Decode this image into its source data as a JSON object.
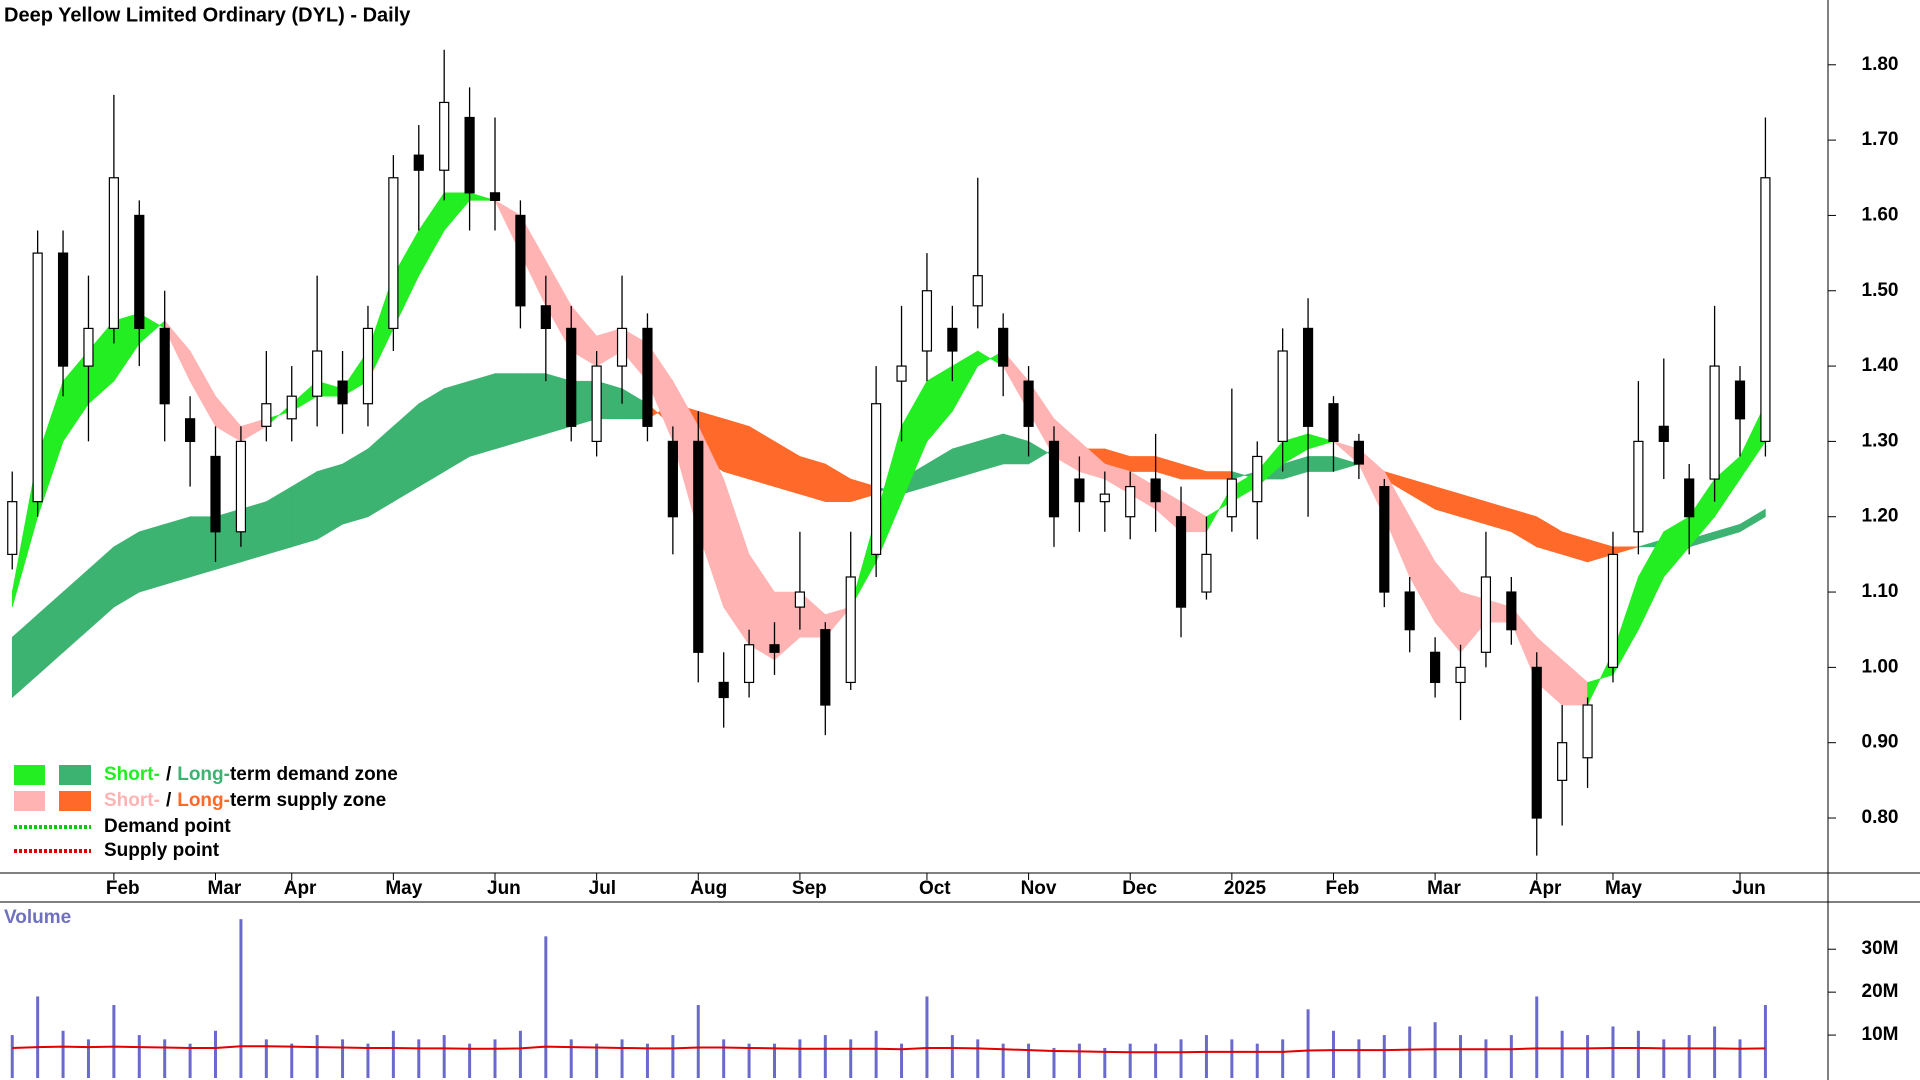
{
  "chart_data": [
    {
      "type": "candlestick",
      "title": "Deep Yellow Limited Ordinary (DYL) - Daily",
      "categories": [
        null,
        null,
        null,
        null,
        "Feb",
        null,
        null,
        null,
        "Mar",
        null,
        null,
        "Apr",
        null,
        null,
        null,
        "May",
        null,
        null,
        null,
        "Jun",
        null,
        null,
        null,
        "Jul",
        null,
        null,
        null,
        "Aug",
        null,
        null,
        null,
        "Sep",
        null,
        null,
        null,
        null,
        "Oct",
        null,
        null,
        null,
        "Nov",
        null,
        null,
        null,
        "Dec",
        null,
        null,
        null,
        "2025",
        null,
        null,
        null,
        "Feb",
        null,
        null,
        null,
        "Mar",
        null,
        null,
        null,
        "Apr",
        null,
        null,
        "May",
        null,
        null,
        null,
        null,
        "Jun",
        null
      ],
      "open": [
        1.15,
        1.22,
        1.55,
        1.4,
        1.45,
        1.6,
        1.45,
        1.33,
        1.28,
        1.18,
        1.32,
        1.33,
        1.36,
        1.38,
        1.35,
        1.45,
        1.68,
        1.66,
        1.73,
        1.63,
        1.6,
        1.48,
        1.45,
        1.3,
        1.4,
        1.45,
        1.3,
        1.3,
        0.98,
        0.98,
        1.03,
        1.08,
        1.05,
        0.98,
        1.15,
        1.38,
        1.42,
        1.45,
        1.48,
        1.45,
        1.38,
        1.3,
        1.25,
        1.22,
        1.2,
        1.25,
        1.2,
        1.1,
        1.2,
        1.22,
        1.3,
        1.45,
        1.35,
        1.3,
        1.24,
        1.1,
        1.02,
        0.98,
        1.02,
        1.1,
        1.0,
        0.85,
        0.88,
        1.0,
        1.18,
        1.32,
        1.25,
        1.25,
        1.38,
        1.3
      ],
      "high": [
        1.26,
        1.58,
        1.58,
        1.52,
        1.76,
        1.62,
        1.5,
        1.36,
        1.32,
        1.32,
        1.42,
        1.4,
        1.52,
        1.42,
        1.48,
        1.68,
        1.72,
        1.82,
        1.77,
        1.73,
        1.62,
        1.52,
        1.48,
        1.42,
        1.52,
        1.47,
        1.32,
        1.34,
        1.02,
        1.05,
        1.06,
        1.18,
        1.06,
        1.18,
        1.4,
        1.48,
        1.55,
        1.48,
        1.65,
        1.47,
        1.4,
        1.32,
        1.28,
        1.26,
        1.26,
        1.31,
        1.24,
        1.2,
        1.37,
        1.3,
        1.45,
        1.49,
        1.36,
        1.31,
        1.25,
        1.12,
        1.04,
        1.03,
        1.18,
        1.12,
        1.02,
        0.95,
        0.96,
        1.18,
        1.38,
        1.41,
        1.27,
        1.48,
        1.4,
        1.73
      ],
      "low": [
        1.13,
        1.2,
        1.36,
        1.3,
        1.43,
        1.4,
        1.3,
        1.24,
        1.14,
        1.16,
        1.3,
        1.3,
        1.32,
        1.31,
        1.32,
        1.42,
        1.58,
        1.62,
        1.58,
        1.58,
        1.45,
        1.38,
        1.3,
        1.28,
        1.35,
        1.3,
        1.15,
        0.98,
        0.92,
        0.96,
        0.99,
        1.05,
        0.91,
        0.97,
        1.12,
        1.3,
        1.38,
        1.38,
        1.45,
        1.36,
        1.28,
        1.16,
        1.18,
        1.18,
        1.17,
        1.18,
        1.04,
        1.09,
        1.18,
        1.17,
        1.26,
        1.2,
        1.26,
        1.25,
        1.08,
        1.02,
        0.96,
        0.93,
        1.0,
        1.03,
        0.75,
        0.79,
        0.84,
        0.98,
        1.15,
        1.25,
        1.15,
        1.22,
        1.28,
        1.28
      ],
      "close": [
        1.22,
        1.55,
        1.4,
        1.45,
        1.65,
        1.45,
        1.35,
        1.3,
        1.18,
        1.3,
        1.35,
        1.36,
        1.42,
        1.35,
        1.45,
        1.65,
        1.66,
        1.75,
        1.63,
        1.62,
        1.48,
        1.45,
        1.32,
        1.4,
        1.45,
        1.32,
        1.2,
        1.02,
        0.96,
        1.03,
        1.02,
        1.1,
        0.95,
        1.12,
        1.35,
        1.4,
        1.5,
        1.42,
        1.52,
        1.4,
        1.32,
        1.2,
        1.22,
        1.23,
        1.24,
        1.22,
        1.08,
        1.15,
        1.25,
        1.28,
        1.42,
        1.32,
        1.3,
        1.27,
        1.1,
        1.05,
        0.98,
        1.0,
        1.12,
        1.05,
        0.8,
        0.9,
        0.95,
        1.15,
        1.3,
        1.3,
        1.2,
        1.4,
        1.33,
        1.65
      ],
      "short_term": {
        "demand_color": "#22ee22",
        "supply_color": "#ffb3b3",
        "fast": [
          1.1,
          1.28,
          1.38,
          1.42,
          1.46,
          1.47,
          1.45,
          1.38,
          1.32,
          1.3,
          1.32,
          1.35,
          1.38,
          1.37,
          1.42,
          1.52,
          1.58,
          1.63,
          1.63,
          1.62,
          1.55,
          1.48,
          1.42,
          1.4,
          1.42,
          1.38,
          1.3,
          1.18,
          1.08,
          1.03,
          1.01,
          1.04,
          1.04,
          1.08,
          1.2,
          1.32,
          1.38,
          1.4,
          1.42,
          1.4,
          1.34,
          1.28,
          1.26,
          1.25,
          1.23,
          1.21,
          1.18,
          1.18,
          1.24,
          1.26,
          1.3,
          1.31,
          1.3,
          1.27,
          1.2,
          1.12,
          1.06,
          1.02,
          1.06,
          1.06,
          0.98,
          0.95,
          0.95,
          1.02,
          1.12,
          1.18,
          1.2,
          1.25,
          1.28,
          1.35
        ],
        "slow": [
          1.08,
          1.2,
          1.3,
          1.35,
          1.38,
          1.43,
          1.46,
          1.42,
          1.36,
          1.32,
          1.33,
          1.34,
          1.36,
          1.36,
          1.38,
          1.45,
          1.52,
          1.58,
          1.62,
          1.62,
          1.6,
          1.54,
          1.48,
          1.44,
          1.45,
          1.43,
          1.38,
          1.32,
          1.25,
          1.15,
          1.1,
          1.1,
          1.07,
          1.08,
          1.14,
          1.22,
          1.3,
          1.34,
          1.4,
          1.42,
          1.38,
          1.33,
          1.3,
          1.27,
          1.26,
          1.24,
          1.22,
          1.2,
          1.22,
          1.24,
          1.27,
          1.29,
          1.3,
          1.29,
          1.26,
          1.2,
          1.14,
          1.1,
          1.09,
          1.08,
          1.04,
          1.01,
          0.98,
          0.99,
          1.05,
          1.12,
          1.16,
          1.2,
          1.25,
          1.3
        ]
      },
      "long_term": {
        "demand_color": "#3cb371",
        "supply_color": "#ff6a2a",
        "fast": [
          1.04,
          1.07,
          1.1,
          1.13,
          1.16,
          1.18,
          1.19,
          1.2,
          1.2,
          1.21,
          1.22,
          1.24,
          1.26,
          1.27,
          1.29,
          1.32,
          1.35,
          1.37,
          1.38,
          1.39,
          1.39,
          1.39,
          1.38,
          1.38,
          1.37,
          1.35,
          1.32,
          1.28,
          1.26,
          1.25,
          1.24,
          1.23,
          1.22,
          1.22,
          1.23,
          1.25,
          1.27,
          1.29,
          1.3,
          1.31,
          1.3,
          1.28,
          1.27,
          1.27,
          1.26,
          1.26,
          1.25,
          1.25,
          1.25,
          1.26,
          1.27,
          1.28,
          1.28,
          1.27,
          1.25,
          1.23,
          1.21,
          1.2,
          1.19,
          1.18,
          1.16,
          1.15,
          1.14,
          1.15,
          1.16,
          1.17,
          1.17,
          1.18,
          1.19,
          1.21
        ],
        "slow": [
          0.96,
          0.99,
          1.02,
          1.05,
          1.08,
          1.1,
          1.11,
          1.12,
          1.13,
          1.14,
          1.15,
          1.16,
          1.17,
          1.19,
          1.2,
          1.22,
          1.24,
          1.26,
          1.28,
          1.29,
          1.3,
          1.31,
          1.32,
          1.33,
          1.33,
          1.33,
          1.35,
          1.34,
          1.33,
          1.32,
          1.3,
          1.28,
          1.27,
          1.25,
          1.24,
          1.23,
          1.24,
          1.25,
          1.26,
          1.27,
          1.27,
          1.29,
          1.29,
          1.29,
          1.28,
          1.28,
          1.27,
          1.26,
          1.26,
          1.25,
          1.25,
          1.26,
          1.26,
          1.27,
          1.26,
          1.25,
          1.24,
          1.23,
          1.22,
          1.21,
          1.2,
          1.18,
          1.17,
          1.16,
          1.16,
          1.16,
          1.16,
          1.17,
          1.18,
          1.2
        ]
      },
      "ylim": [
        0.727,
        1.886
      ],
      "yticks": [
        {
          "value": 0.8,
          "label": "0.80"
        },
        {
          "value": 0.9,
          "label": "0.90"
        },
        {
          "value": 1.0,
          "label": "1.00"
        },
        {
          "value": 1.1,
          "label": "1.10"
        },
        {
          "value": 1.2,
          "label": "1.20"
        },
        {
          "value": 1.3,
          "label": "1.30"
        },
        {
          "value": 1.4,
          "label": "1.40"
        },
        {
          "value": 1.5,
          "label": "1.50"
        },
        {
          "value": 1.6,
          "label": "1.60"
        },
        {
          "value": 1.7,
          "label": "1.70"
        },
        {
          "value": 1.8,
          "label": "1.80"
        }
      ],
      "legend": [
        {
          "parts": [
            "Short-",
            "/",
            "Long-",
            "term demand zone"
          ],
          "zone": "demand"
        },
        {
          "parts": [
            "Short-",
            "/",
            "Long-",
            "term supply zone"
          ],
          "zone": "supply"
        },
        {
          "parts": [
            "Demand point"
          ],
          "line_color": "#00cc00"
        },
        {
          "parts": [
            "Supply point"
          ],
          "line_color": "#e00000"
        }
      ]
    },
    {
      "type": "bar",
      "title": "Volume",
      "color": "#6a6acd",
      "average_color": "#e00000",
      "values": [
        10000000,
        19000000,
        11000000,
        9000000,
        17000000,
        10000000,
        9000000,
        8000000,
        11000000,
        37000000,
        9000000,
        8000000,
        10000000,
        9000000,
        8000000,
        11000000,
        9000000,
        10000000,
        8000000,
        9000000,
        11000000,
        33000000,
        9000000,
        8000000,
        9000000,
        8000000,
        10000000,
        17000000,
        9000000,
        8000000,
        8000000,
        9000000,
        10000000,
        9000000,
        11000000,
        8000000,
        19000000,
        10000000,
        9000000,
        8000000,
        8000000,
        7000000,
        8000000,
        7000000,
        8000000,
        8000000,
        9000000,
        10000000,
        9000000,
        8000000,
        9000000,
        16000000,
        11000000,
        9000000,
        10000000,
        12000000,
        13000000,
        10000000,
        9000000,
        10000000,
        19000000,
        11000000,
        10000000,
        12000000,
        11000000,
        9000000,
        10000000,
        12000000,
        9000000,
        17000000
      ],
      "average": [
        7000000,
        7200000,
        7300000,
        7200000,
        7300000,
        7200000,
        7100000,
        7000000,
        7000000,
        7400000,
        7400000,
        7300000,
        7200000,
        7100000,
        7000000,
        7000000,
        6900000,
        6900000,
        6800000,
        6800000,
        6900000,
        7300000,
        7200000,
        7100000,
        7000000,
        6900000,
        6900000,
        7100000,
        7100000,
        7000000,
        6900000,
        6800000,
        6800000,
        6800000,
        6800000,
        6700000,
        7000000,
        7000000,
        6900000,
        6700000,
        6500000,
        6300000,
        6200000,
        6100000,
        6000000,
        6000000,
        6000000,
        6100000,
        6100000,
        6100000,
        6100000,
        6400000,
        6500000,
        6500000,
        6500000,
        6600000,
        6700000,
        6700000,
        6700000,
        6700000,
        6900000,
        6900000,
        6900000,
        7000000,
        7000000,
        6900000,
        6900000,
        6900000,
        6800000,
        6900000
      ],
      "ylim": [
        0,
        41000000
      ],
      "yticks": [
        {
          "value": 10000000,
          "label": "10M"
        },
        {
          "value": 20000000,
          "label": "20M"
        },
        {
          "value": 30000000,
          "label": "30M"
        }
      ]
    }
  ]
}
